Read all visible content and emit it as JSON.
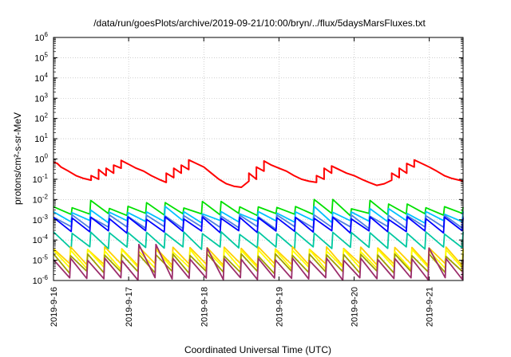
{
  "chart_data": {
    "type": "line",
    "title": "/data/run/goesPlots/archive/2019-09-21/10:00/bryn/../flux/5daysMarsFluxes.txt",
    "xlabel": "Coordinated Universal Time (UTC)",
    "ylabel": "protons/cm²-s-sr-MeV",
    "y_scale": "log",
    "ylim": [
      1e-06,
      1000000.0
    ],
    "xlim": [
      0,
      5.45
    ],
    "x_unit": "days since 2019-9-16 00:00 UTC",
    "x_ticks": [
      {
        "x": 0,
        "label": "2019-9-16"
      },
      {
        "x": 1,
        "label": "2019-9-17"
      },
      {
        "x": 2,
        "label": "2019-9-18"
      },
      {
        "x": 3,
        "label": "2019-9-19"
      },
      {
        "x": 4,
        "label": "2019-9-20"
      },
      {
        "x": 5,
        "label": "2019-9-21"
      }
    ],
    "y_ticks": [
      {
        "exp": -6,
        "label": "10-6"
      },
      {
        "exp": -5,
        "label": "10-5"
      },
      {
        "exp": -4,
        "label": "10-4"
      },
      {
        "exp": -3,
        "label": "10-3"
      },
      {
        "exp": -2,
        "label": "10-2"
      },
      {
        "exp": -1,
        "label": "10-1"
      },
      {
        "exp": 0,
        "label": "100"
      },
      {
        "exp": 1,
        "label": "101"
      },
      {
        "exp": 2,
        "label": "102"
      },
      {
        "exp": 3,
        "label": "103"
      },
      {
        "exp": 4,
        "label": "104"
      },
      {
        "exp": 5,
        "label": "105"
      },
      {
        "exp": 6,
        "label": "106"
      }
    ],
    "grid": true,
    "legend": "none",
    "series": [
      {
        "color": "#ff0000",
        "x": [
          0,
          0.05,
          0.1,
          0.2,
          0.3,
          0.4,
          0.5,
          0.5,
          0.6,
          0.6,
          0.7,
          0.7,
          0.8,
          0.8,
          0.9,
          0.9,
          1.0,
          1.1,
          1.2,
          1.3,
          1.4,
          1.5,
          1.5,
          1.6,
          1.6,
          1.7,
          1.7,
          1.8,
          1.8,
          1.9,
          2.0,
          2.1,
          2.2,
          2.3,
          2.4,
          2.5,
          2.6,
          2.6,
          2.7,
          2.7,
          2.8,
          2.8,
          2.9,
          3.0,
          3.1,
          3.2,
          3.3,
          3.4,
          3.5,
          3.5,
          3.6,
          3.6,
          3.7,
          3.7,
          3.8,
          3.9,
          4.0,
          4.1,
          4.2,
          4.3,
          4.4,
          4.5,
          4.5,
          4.6,
          4.6,
          4.7,
          4.7,
          4.8,
          4.8,
          4.9,
          5.0,
          5.1,
          5.2,
          5.3,
          5.4,
          5.45
        ],
        "y": [
          0.7,
          0.6,
          0.4,
          0.25,
          0.15,
          0.11,
          0.09,
          0.15,
          0.1,
          0.3,
          0.15,
          0.35,
          0.2,
          0.5,
          0.35,
          0.85,
          0.55,
          0.35,
          0.25,
          0.15,
          0.1,
          0.07,
          0.2,
          0.12,
          0.35,
          0.2,
          0.5,
          0.3,
          0.9,
          0.6,
          0.4,
          0.2,
          0.1,
          0.06,
          0.045,
          0.04,
          0.08,
          0.2,
          0.1,
          0.4,
          0.25,
          0.8,
          0.5,
          0.35,
          0.25,
          0.15,
          0.1,
          0.08,
          0.07,
          0.15,
          0.1,
          0.35,
          0.2,
          0.45,
          0.3,
          0.2,
          0.15,
          0.1,
          0.07,
          0.05,
          0.06,
          0.09,
          0.2,
          0.12,
          0.35,
          0.2,
          0.6,
          0.4,
          0.9,
          0.6,
          0.4,
          0.25,
          0.15,
          0.11,
          0.09,
          0.08
        ]
      },
      {
        "color": "#00e000",
        "sawtooth": {
          "low": 0.0018,
          "high": 0.004,
          "n": 22,
          "bumps": [
            [
              0.4,
              0.009
            ],
            [
              1.35,
              0.007
            ],
            [
              2.1,
              0.008
            ],
            [
              3.6,
              0.01
            ],
            [
              4.3,
              0.009
            ],
            [
              4.6,
              0.006
            ]
          ]
        }
      },
      {
        "color": "#00c0ff",
        "sawtooth": {
          "low": 0.0008,
          "high": 0.0022,
          "n": 22,
          "bumps": [
            [
              0.45,
              0.003
            ],
            [
              1.45,
              0.0045
            ],
            [
              3.55,
              0.0045
            ],
            [
              4.35,
              0.0035
            ]
          ]
        }
      },
      {
        "color": "#4f7fe0",
        "sawtooth": {
          "low": 0.0004,
          "high": 0.0015,
          "n": 22,
          "bumps": []
        }
      },
      {
        "color": "#0000ff",
        "sawtooth": {
          "low": 0.00025,
          "high": 0.0012,
          "n": 22,
          "bumps": []
        }
      },
      {
        "color": "#00c8a0",
        "sawtooth": {
          "low": 4e-05,
          "high": 0.00022,
          "n": 22,
          "bumps": []
        }
      },
      {
        "color": "#ffd000",
        "sawtooth": {
          "low": 6e-06,
          "high": 4e-05,
          "n": 24,
          "bumps": []
        }
      },
      {
        "color": "#ffff00",
        "sawtooth": {
          "low": 4e-06,
          "high": 3e-05,
          "n": 24,
          "bumps": []
        }
      },
      {
        "color": "#a0a000",
        "sawtooth": {
          "low": 2.5e-06,
          "high": 1.8e-05,
          "n": 24,
          "bumps": []
        }
      },
      {
        "color": "#9b2d6b",
        "sawtooth": {
          "low": 1.2e-06,
          "high": 1.1e-05,
          "n": 24,
          "bumps": [
            [
              1.25,
              6e-05
            ],
            [
              2.05,
              4e-05
            ],
            [
              4.95,
              4e-05
            ]
          ]
        }
      }
    ]
  }
}
